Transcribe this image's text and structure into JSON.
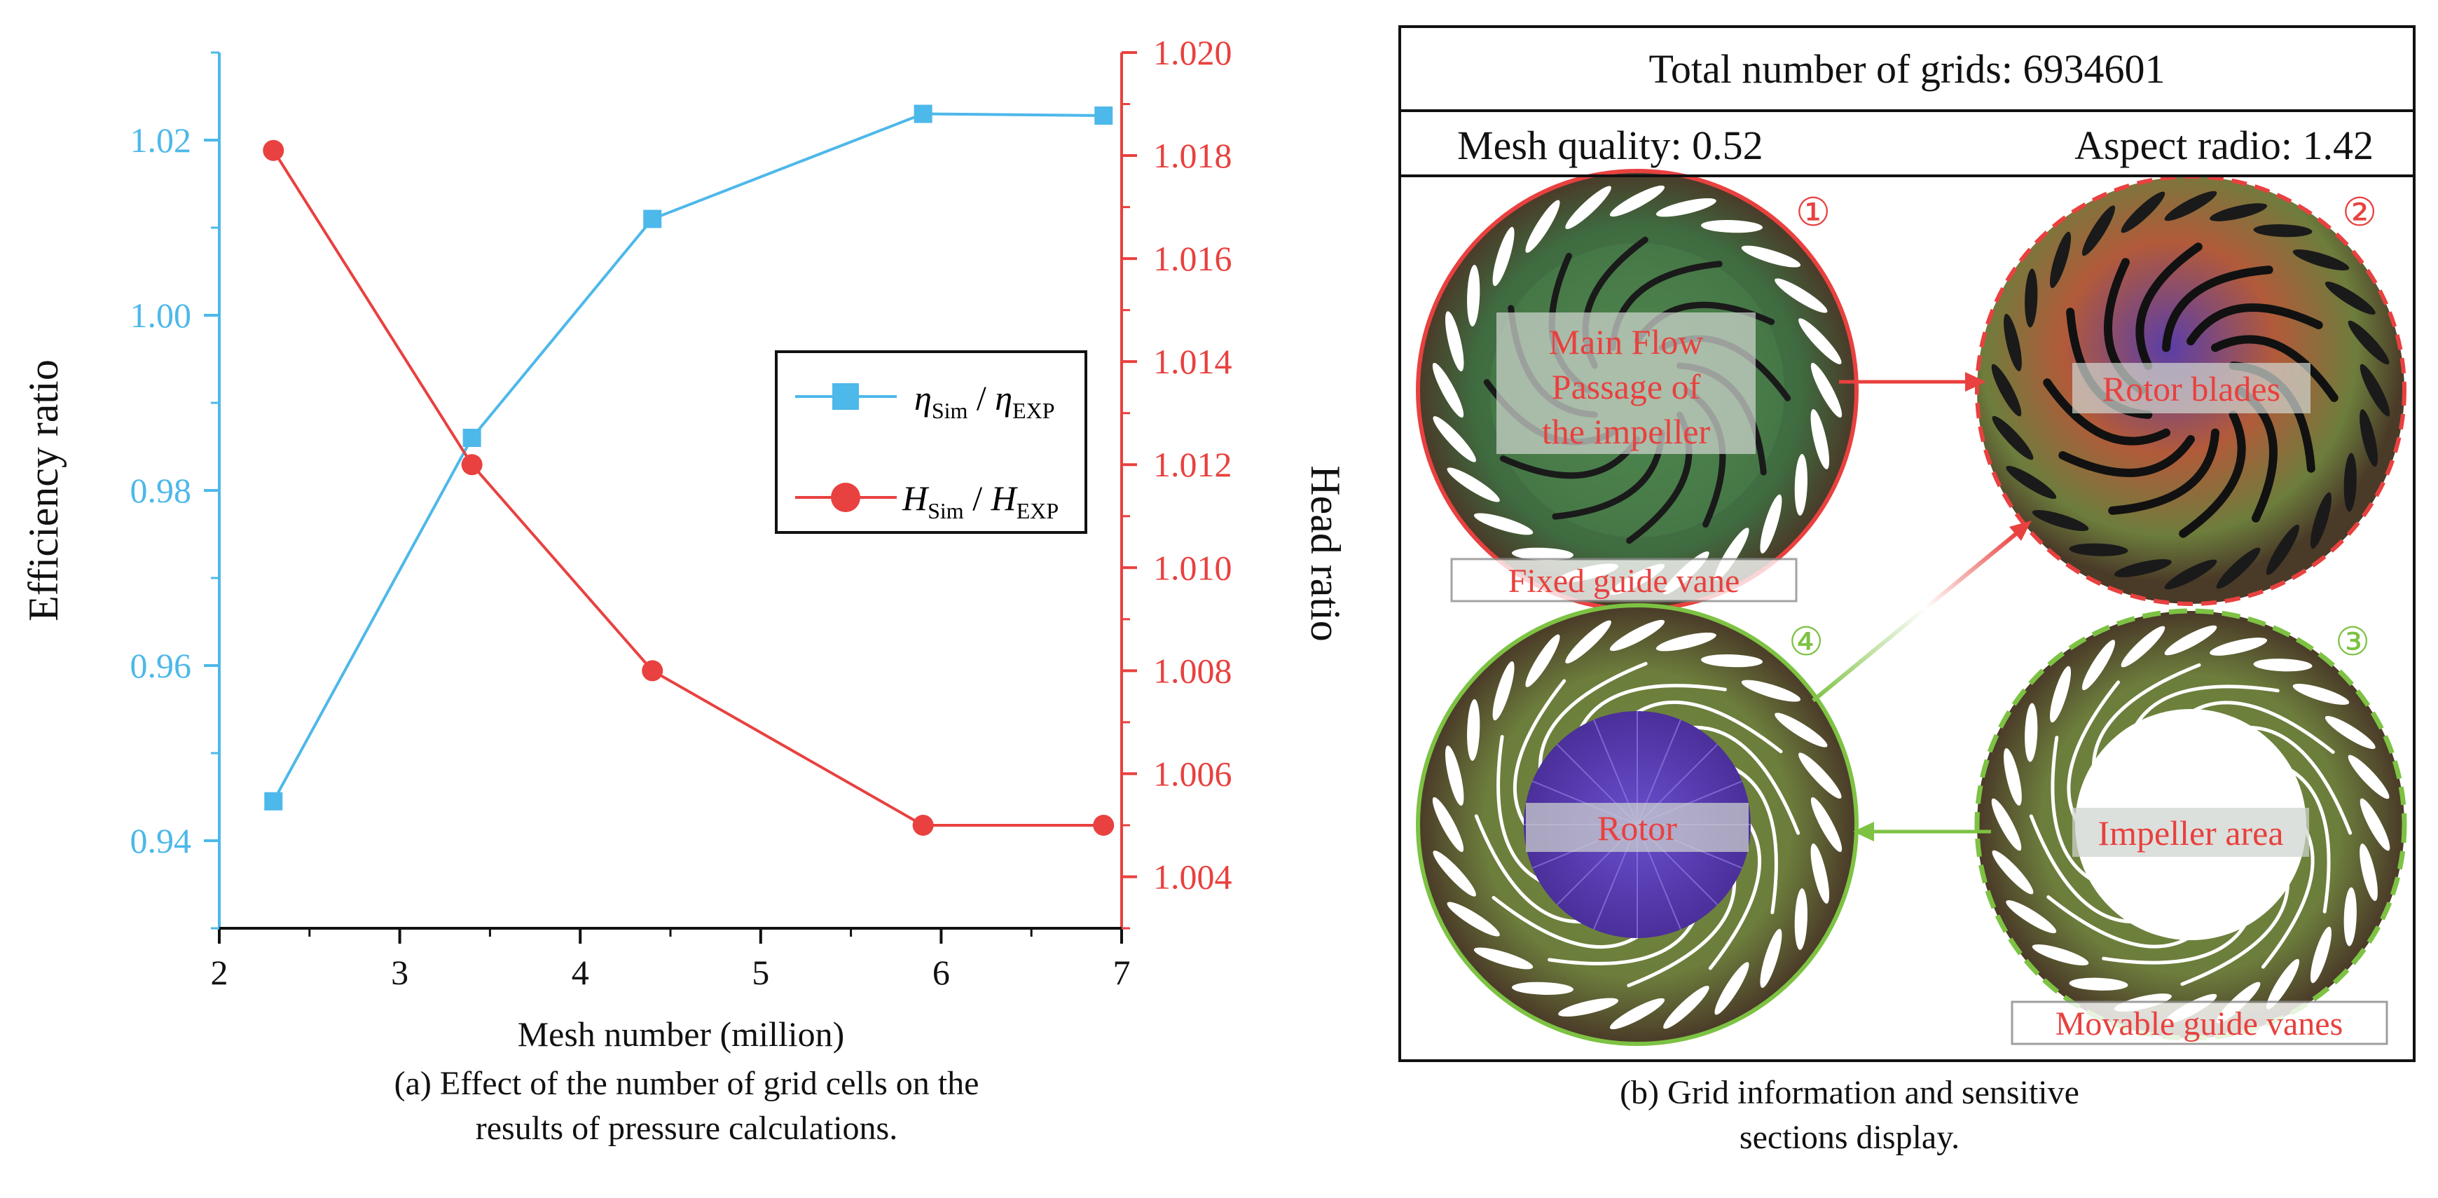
{
  "chart_data": {
    "type": "line",
    "xlabel": "Mesh number (million)",
    "ylabel_left": "Efficiency ratio",
    "ylabel_right": "Head ratio",
    "xlim": [
      2,
      7
    ],
    "ylim_left": [
      0.93,
      1.03
    ],
    "ylim_right": [
      1.003,
      1.02
    ],
    "x_ticks": [
      2,
      3,
      4,
      5,
      6,
      7
    ],
    "y_ticks_left": [
      0.94,
      0.96,
      0.98,
      1.0,
      1.02
    ],
    "y_tick_labels_left": [
      "0.94",
      "0.96",
      "0.98",
      "1.00",
      "1.02"
    ],
    "y_ticks_right": [
      1.004,
      1.006,
      1.008,
      1.01,
      1.012,
      1.014,
      1.016,
      1.018,
      1.02
    ],
    "y_tick_labels_right": [
      "1.004",
      "1.006",
      "1.008",
      "1.010",
      "1.012",
      "1.014",
      "1.016",
      "1.018",
      "1.020"
    ],
    "x": [
      2.3,
      3.4,
      4.4,
      5.9,
      6.9
    ],
    "series": [
      {
        "name": "η_Sim / η_EXP",
        "name_main_1": "η",
        "name_sub_1": "Sim",
        "name_main_2": "η",
        "name_sub_2": "EXP",
        "axis": "left",
        "marker": "square",
        "color": "#4DB8EA",
        "values": [
          0.9445,
          0.986,
          1.011,
          1.023,
          1.0228
        ]
      },
      {
        "name": "H_Sim / H_EXP",
        "name_main_1": "H",
        "name_sub_1": "Sim",
        "name_main_2": "H",
        "name_sub_2": "EXP",
        "axis": "right",
        "marker": "circle",
        "color": "#E8413F",
        "values": [
          1.0181,
          1.012,
          1.008,
          1.005,
          1.005
        ]
      }
    ],
    "legend": "center-right",
    "grid": false
  },
  "captions": {
    "a_line1": "(a) Effect of the number of grid cells on the",
    "a_line2": "results of pressure calculations.",
    "b_line1": "(b) Grid information and sensitive",
    "b_line2": "sections display."
  },
  "panel_b": {
    "total": "Total number of grids: 6934601",
    "quality": "Mesh quality: 0.52",
    "aspect": "Aspect radio: 1.42",
    "sections": [
      {
        "number": "①",
        "label_lines": [
          "Main Flow",
          "Passage of",
          "the impeller"
        ],
        "color": "#E8413F"
      },
      {
        "number": "②",
        "label_lines": [
          "Rotor blades"
        ],
        "color": "#E8413F"
      },
      {
        "number": "③",
        "label_lines": [
          "Rotor"
        ],
        "color": "#7DC243"
      },
      {
        "number": "④",
        "label_lines": [
          "Impeller area"
        ],
        "color": "#7DC243"
      }
    ],
    "fixed_vane_label": "Fixed guide vane",
    "movable_vane_label": "Movable guide vanes",
    "label_color": "#E8413F"
  },
  "colors": {
    "eff_axis": "#4DB8EA",
    "head_axis": "#E8413F",
    "green": "#7DC243",
    "red": "#E8413F"
  }
}
